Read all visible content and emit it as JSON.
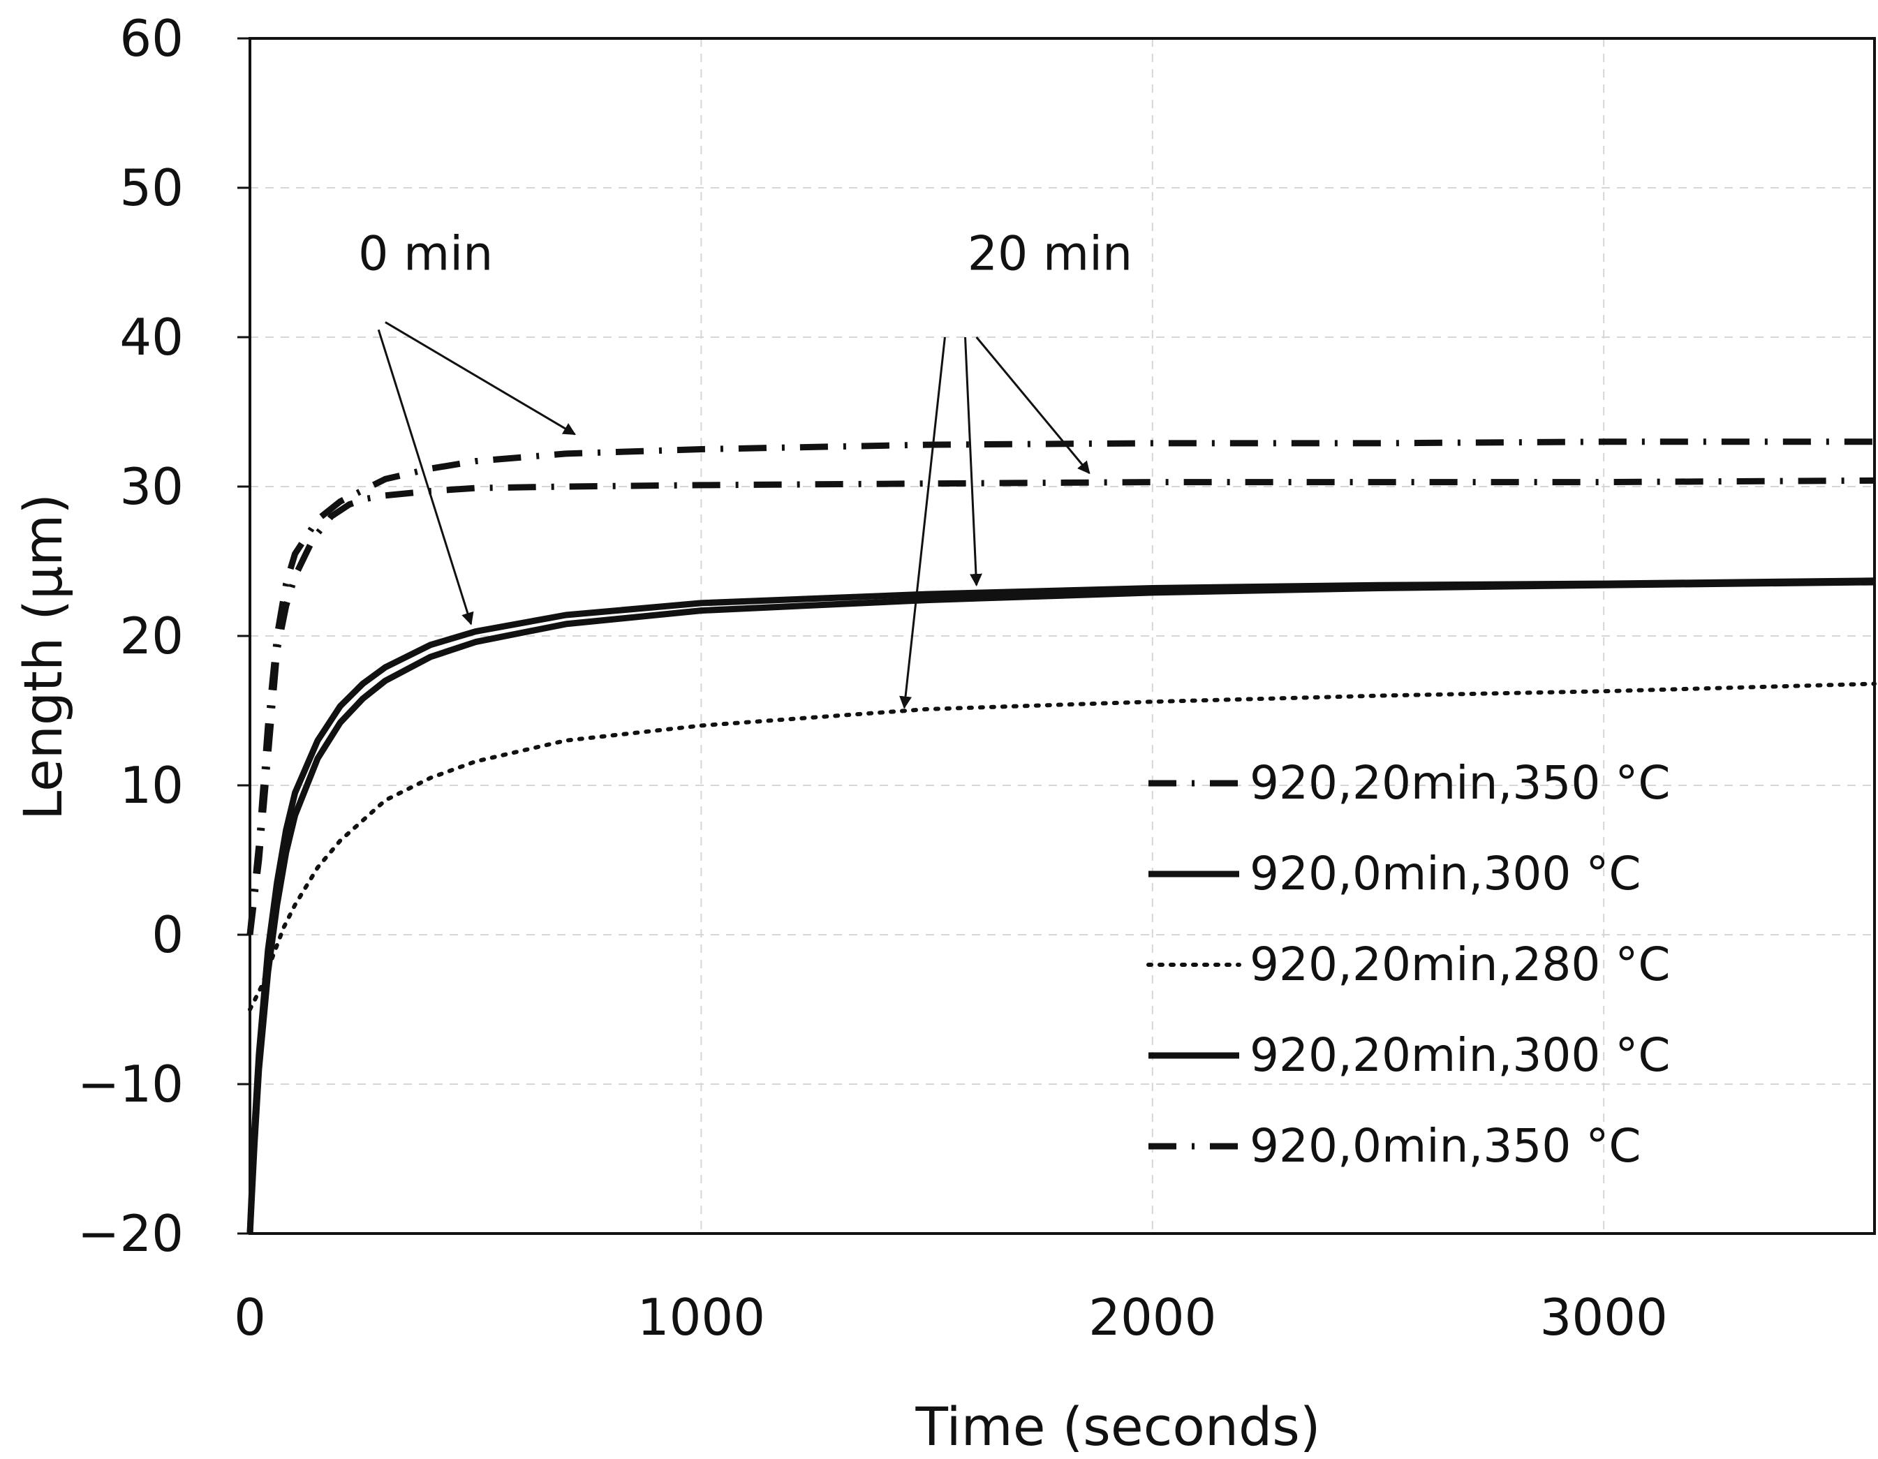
{
  "chart_data": {
    "type": "line",
    "title": "",
    "xlabel": "Time (seconds)",
    "ylabel": "Length (μm)",
    "xlim": [
      0,
      3600
    ],
    "ylim": [
      -20,
      60
    ],
    "xticks": [
      0,
      1000,
      2000,
      3000
    ],
    "yticks": [
      -20,
      -10,
      0,
      10,
      20,
      30,
      40,
      50,
      60
    ],
    "ytick_labels": [
      "−20",
      "−10",
      "0",
      "10",
      "20",
      "30",
      "40",
      "50",
      "60"
    ],
    "grid": true,
    "legend_position": "lower-right",
    "series": [
      {
        "name": "920,20min,350 °C",
        "style": "dash-dot",
        "x": [
          0,
          20,
          40,
          60,
          80,
          100,
          140,
          180,
          220,
          260,
          300,
          400,
          500,
          700,
          1000,
          1500,
          2000,
          2500,
          3000,
          3600
        ],
        "y": [
          0,
          5,
          12,
          19,
          22,
          24,
          26.5,
          28,
          28.8,
          29.2,
          29.4,
          29.7,
          29.9,
          30,
          30.1,
          30.2,
          30.3,
          30.3,
          30.3,
          30.4
        ]
      },
      {
        "name": "920,0min,300 °C",
        "style": "solid",
        "x": [
          0,
          10,
          20,
          40,
          60,
          80,
          100,
          150,
          200,
          250,
          300,
          400,
          500,
          700,
          1000,
          1500,
          2000,
          2500,
          3000,
          3600
        ],
        "y": [
          -20,
          -13,
          -8,
          -1,
          3.5,
          7,
          9.5,
          13,
          15.3,
          16.8,
          17.9,
          19.4,
          20.3,
          21.4,
          22.2,
          22.8,
          23.2,
          23.4,
          23.5,
          23.7
        ]
      },
      {
        "name": "920,20min,280 °C",
        "style": "dotted",
        "x": [
          0,
          25,
          50,
          75,
          100,
          150,
          200,
          300,
          400,
          500,
          700,
          1000,
          1500,
          2000,
          2500,
          3000,
          3600
        ],
        "y": [
          -5,
          -3.5,
          -1.5,
          0.5,
          2,
          4.5,
          6.3,
          9,
          10.5,
          11.6,
          13,
          14,
          15.1,
          15.6,
          16,
          16.3,
          16.8
        ]
      },
      {
        "name": "920,20min,300 °C",
        "style": "solid",
        "x": [
          0,
          10,
          20,
          40,
          60,
          80,
          100,
          150,
          200,
          250,
          300,
          400,
          500,
          700,
          1000,
          1500,
          2000,
          2500,
          3000,
          3600
        ],
        "y": [
          -20,
          -14,
          -9,
          -2.5,
          2,
          5.5,
          8,
          11.8,
          14.2,
          15.8,
          17,
          18.6,
          19.6,
          20.8,
          21.7,
          22.4,
          22.9,
          23.2,
          23.4,
          23.6
        ]
      },
      {
        "name": "920,0min,350 °C",
        "style": "dash-dot",
        "x": [
          0,
          20,
          40,
          60,
          80,
          100,
          150,
          200,
          300,
          400,
          500,
          700,
          1000,
          1500,
          2000,
          2500,
          3000,
          3600
        ],
        "y": [
          0,
          6,
          14,
          20,
          23.5,
          25.5,
          27.8,
          29,
          30.5,
          31.2,
          31.7,
          32.2,
          32.5,
          32.8,
          32.9,
          32.9,
          33,
          33
        ]
      }
    ],
    "annotations": [
      {
        "text": "0 min",
        "x": 240,
        "y": 44.5,
        "arrows": [
          {
            "from": [
              300,
              41
            ],
            "to": [
              720,
              33.5
            ]
          },
          {
            "from": [
              285,
              40.5
            ],
            "to": [
              490,
              20.8
            ]
          }
        ]
      },
      {
        "text": "20 min",
        "x": 1590,
        "y": 44.5,
        "arrows": [
          {
            "from": [
              1610,
              40
            ],
            "to": [
              1860,
              30.9
            ]
          },
          {
            "from": [
              1585,
              40
            ],
            "to": [
              1610,
              23.4
            ]
          },
          {
            "from": [
              1540,
              40
            ],
            "to": [
              1450,
              15.2
            ]
          }
        ]
      }
    ]
  }
}
